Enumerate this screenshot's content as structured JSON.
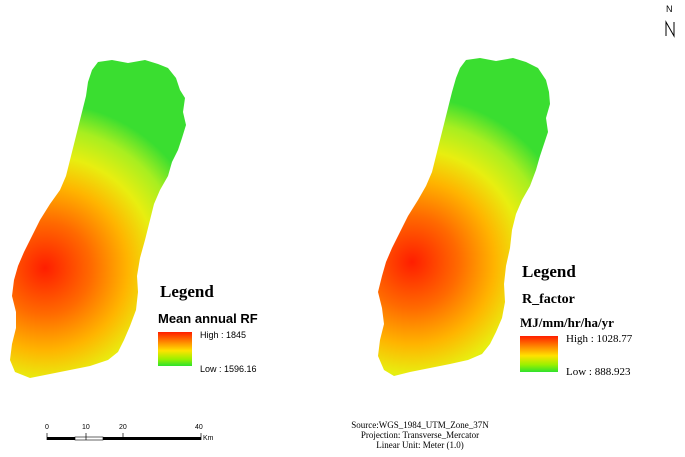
{
  "north_arrow": {
    "label": "N"
  },
  "maps": [
    {
      "legend_title": "Legend",
      "field": "Mean annual RF",
      "high": "High : 1845",
      "low": "Low : 1596.16"
    },
    {
      "legend_title": "Legend",
      "field": "R_factor",
      "unit": "MJ/mm/hr/ha/yr",
      "high": "High : 1028.77",
      "low": "Low : 888.923"
    }
  ],
  "scalebar": {
    "ticks": [
      "0",
      "10",
      "20",
      "40"
    ],
    "unit": "Km"
  },
  "source_note": {
    "line1": "Source:WGS_1984_UTM_Zone_37N",
    "line2": "Projection: Transverse_Mercator",
    "line3": "Linear Unit: Meter (1.0)"
  },
  "colors": {
    "high": "#ff1e00",
    "mid": "#ffe200",
    "low": "#2ee22e"
  }
}
